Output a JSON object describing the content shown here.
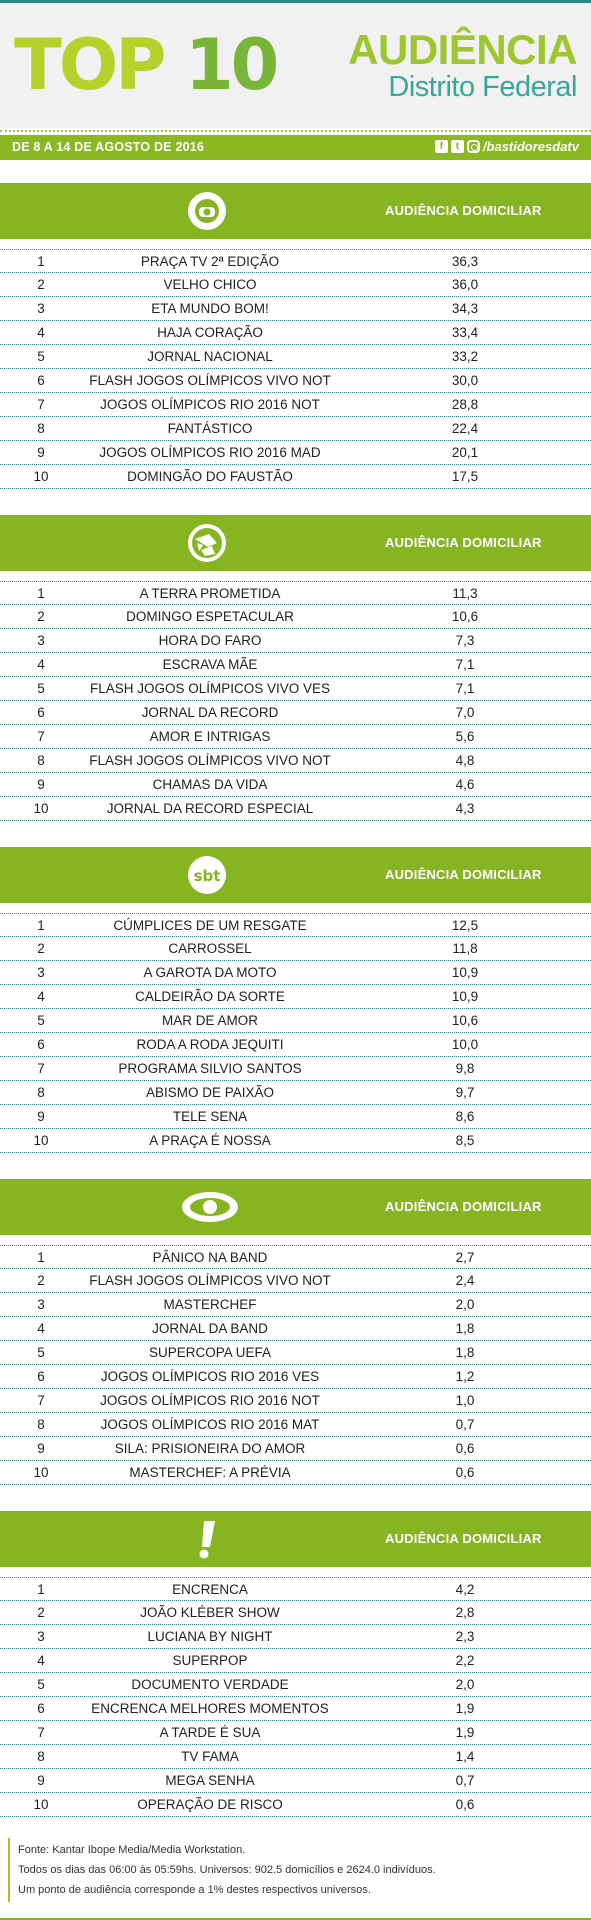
{
  "header": {
    "title_part1": "TOP ",
    "title_part2": "10",
    "audiencia": "AUDIÊNCIA",
    "region": "Distrito Federal"
  },
  "date_bar": {
    "date": "DE 8 A 14 DE AGOSTO DE 2016",
    "handle": "/bastidoresdatv",
    "icons": [
      "facebook-icon",
      "twitter-icon",
      "instagram-icon"
    ]
  },
  "colors": {
    "accent": "#86b521",
    "teal": "#2f7f86",
    "title_green": "#b5d22a"
  },
  "sections": [
    {
      "channel_icon": "globo-logo-icon",
      "label": "AUDIÊNCIA DOMICILIAR",
      "rows": [
        {
          "rank": "1",
          "program": "PRAÇA TV 2ª EDIÇÃO",
          "value": "36,3"
        },
        {
          "rank": "2",
          "program": "VELHO CHICO",
          "value": "36,0"
        },
        {
          "rank": "3",
          "program": "ETA MUNDO BOM!",
          "value": "34,3"
        },
        {
          "rank": "4",
          "program": "HAJA CORAÇÃO",
          "value": "33,4"
        },
        {
          "rank": "5",
          "program": "JORNAL NACIONAL",
          "value": "33,2"
        },
        {
          "rank": "6",
          "program": "FLASH JOGOS OLÍMPICOS VIVO NOT",
          "value": "30,0"
        },
        {
          "rank": "7",
          "program": "JOGOS OLÍMPICOS RIO 2016 NOT",
          "value": "28,8"
        },
        {
          "rank": "8",
          "program": "FANTÁSTICO",
          "value": "22,4"
        },
        {
          "rank": "9",
          "program": "JOGOS OLÍMPICOS RIO 2016 MAD",
          "value": "20,1"
        },
        {
          "rank": "10",
          "program": "DOMINGÃO DO FAUSTÃO",
          "value": "17,5"
        }
      ]
    },
    {
      "channel_icon": "record-logo-icon",
      "label": "AUDIÊNCIA DOMICILIAR",
      "rows": [
        {
          "rank": "1",
          "program": "A TERRA PROMETIDA",
          "value": "11,3"
        },
        {
          "rank": "2",
          "program": "DOMINGO ESPETACULAR",
          "value": "10,6"
        },
        {
          "rank": "3",
          "program": "HORA DO FARO",
          "value": "7,3"
        },
        {
          "rank": "4",
          "program": "ESCRAVA MÃE",
          "value": "7,1"
        },
        {
          "rank": "5",
          "program": "FLASH JOGOS OLÍMPICOS VIVO VES",
          "value": "7,1"
        },
        {
          "rank": "6",
          "program": "JORNAL DA RECORD",
          "value": "7,0"
        },
        {
          "rank": "7",
          "program": "AMOR E INTRIGAS",
          "value": "5,6"
        },
        {
          "rank": "8",
          "program": "FLASH JOGOS OLÍMPICOS VIVO NOT",
          "value": "4,8"
        },
        {
          "rank": "9",
          "program": "CHAMAS DA VIDA",
          "value": "4,6"
        },
        {
          "rank": "10",
          "program": "JORNAL DA RECORD ESPECIAL",
          "value": "4,3"
        }
      ]
    },
    {
      "channel_icon": "sbt-logo-icon",
      "logo_text": "sbt",
      "label": "AUDIÊNCIA DOMICILIAR",
      "rows": [
        {
          "rank": "1",
          "program": "CÚMPLICES DE UM RESGATE",
          "value": "12,5"
        },
        {
          "rank": "2",
          "program": "CARROSSEL",
          "value": "11,8"
        },
        {
          "rank": "3",
          "program": "A GAROTA DA MOTO",
          "value": "10,9"
        },
        {
          "rank": "4",
          "program": "CALDEIRÃO DA SORTE",
          "value": "10,9"
        },
        {
          "rank": "5",
          "program": "MAR DE AMOR",
          "value": "10,6"
        },
        {
          "rank": "6",
          "program": "RODA A RODA JEQUITI",
          "value": "10,0"
        },
        {
          "rank": "7",
          "program": "PROGRAMA SILVIO SANTOS",
          "value": "9,8"
        },
        {
          "rank": "8",
          "program": "ABISMO DE PAIXÃO",
          "value": "9,7"
        },
        {
          "rank": "9",
          "program": "TELE SENA",
          "value": "8,6"
        },
        {
          "rank": "10",
          "program": "A PRAÇA É NOSSA",
          "value": "8,5"
        }
      ]
    },
    {
      "channel_icon": "band-logo-icon",
      "label": "AUDIÊNCIA DOMICILIAR",
      "rows": [
        {
          "rank": "1",
          "program": "PÂNICO NA BAND",
          "value": "2,7"
        },
        {
          "rank": "2",
          "program": "FLASH JOGOS OLÍMPICOS VIVO NOT",
          "value": "2,4"
        },
        {
          "rank": "3",
          "program": "MASTERCHEF",
          "value": "2,0"
        },
        {
          "rank": "4",
          "program": "JORNAL DA BAND",
          "value": "1,8"
        },
        {
          "rank": "5",
          "program": "SUPERCOPA UEFA",
          "value": "1,8"
        },
        {
          "rank": "6",
          "program": "JOGOS OLÍMPICOS RIO 2016 VES",
          "value": "1,2"
        },
        {
          "rank": "7",
          "program": "JOGOS OLÍMPICOS RIO 2016 NOT",
          "value": "1,0"
        },
        {
          "rank": "8",
          "program": "JOGOS OLÍMPICOS RIO 2016 MAT",
          "value": "0,7"
        },
        {
          "rank": "9",
          "program": "SILA: PRISIONEIRA DO AMOR",
          "value": "0,6"
        },
        {
          "rank": "10",
          "program": "MASTERCHEF: A PRÉVIA",
          "value": "0,6"
        }
      ]
    },
    {
      "channel_icon": "redetv-logo-icon",
      "label": "AUDIÊNCIA DOMICILIAR",
      "rows": [
        {
          "rank": "1",
          "program": "ENCRENCA",
          "value": "4,2"
        },
        {
          "rank": "2",
          "program": "JOÃO KLÉBER SHOW",
          "value": "2,8"
        },
        {
          "rank": "3",
          "program": "LUCIANA BY NIGHT",
          "value": "2,3"
        },
        {
          "rank": "4",
          "program": "SUPERPOP",
          "value": "2,2"
        },
        {
          "rank": "5",
          "program": "DOCUMENTO VERDADE",
          "value": "2,0"
        },
        {
          "rank": "6",
          "program": "ENCRENCA MELHORES MOMENTOS",
          "value": "1,9"
        },
        {
          "rank": "7",
          "program": "A TARDE É SUA",
          "value": "1,9"
        },
        {
          "rank": "8",
          "program": "TV FAMA",
          "value": "1,4"
        },
        {
          "rank": "9",
          "program": "MEGA SENHA",
          "value": "0,7"
        },
        {
          "rank": "10",
          "program": "OPERAÇÃO DE RISCO",
          "value": "0,6"
        }
      ]
    }
  ],
  "footer": {
    "line1": "Fonte: Kantar Ibope Media/Media Workstation.",
    "line2": "Todos os dias das 06:00 às 05:59hs. Universos: 902.5 domicílios e 2624.0 indivíduos.",
    "line3": "Um ponto de audiência corresponde a 1% destes respectivos universos."
  }
}
